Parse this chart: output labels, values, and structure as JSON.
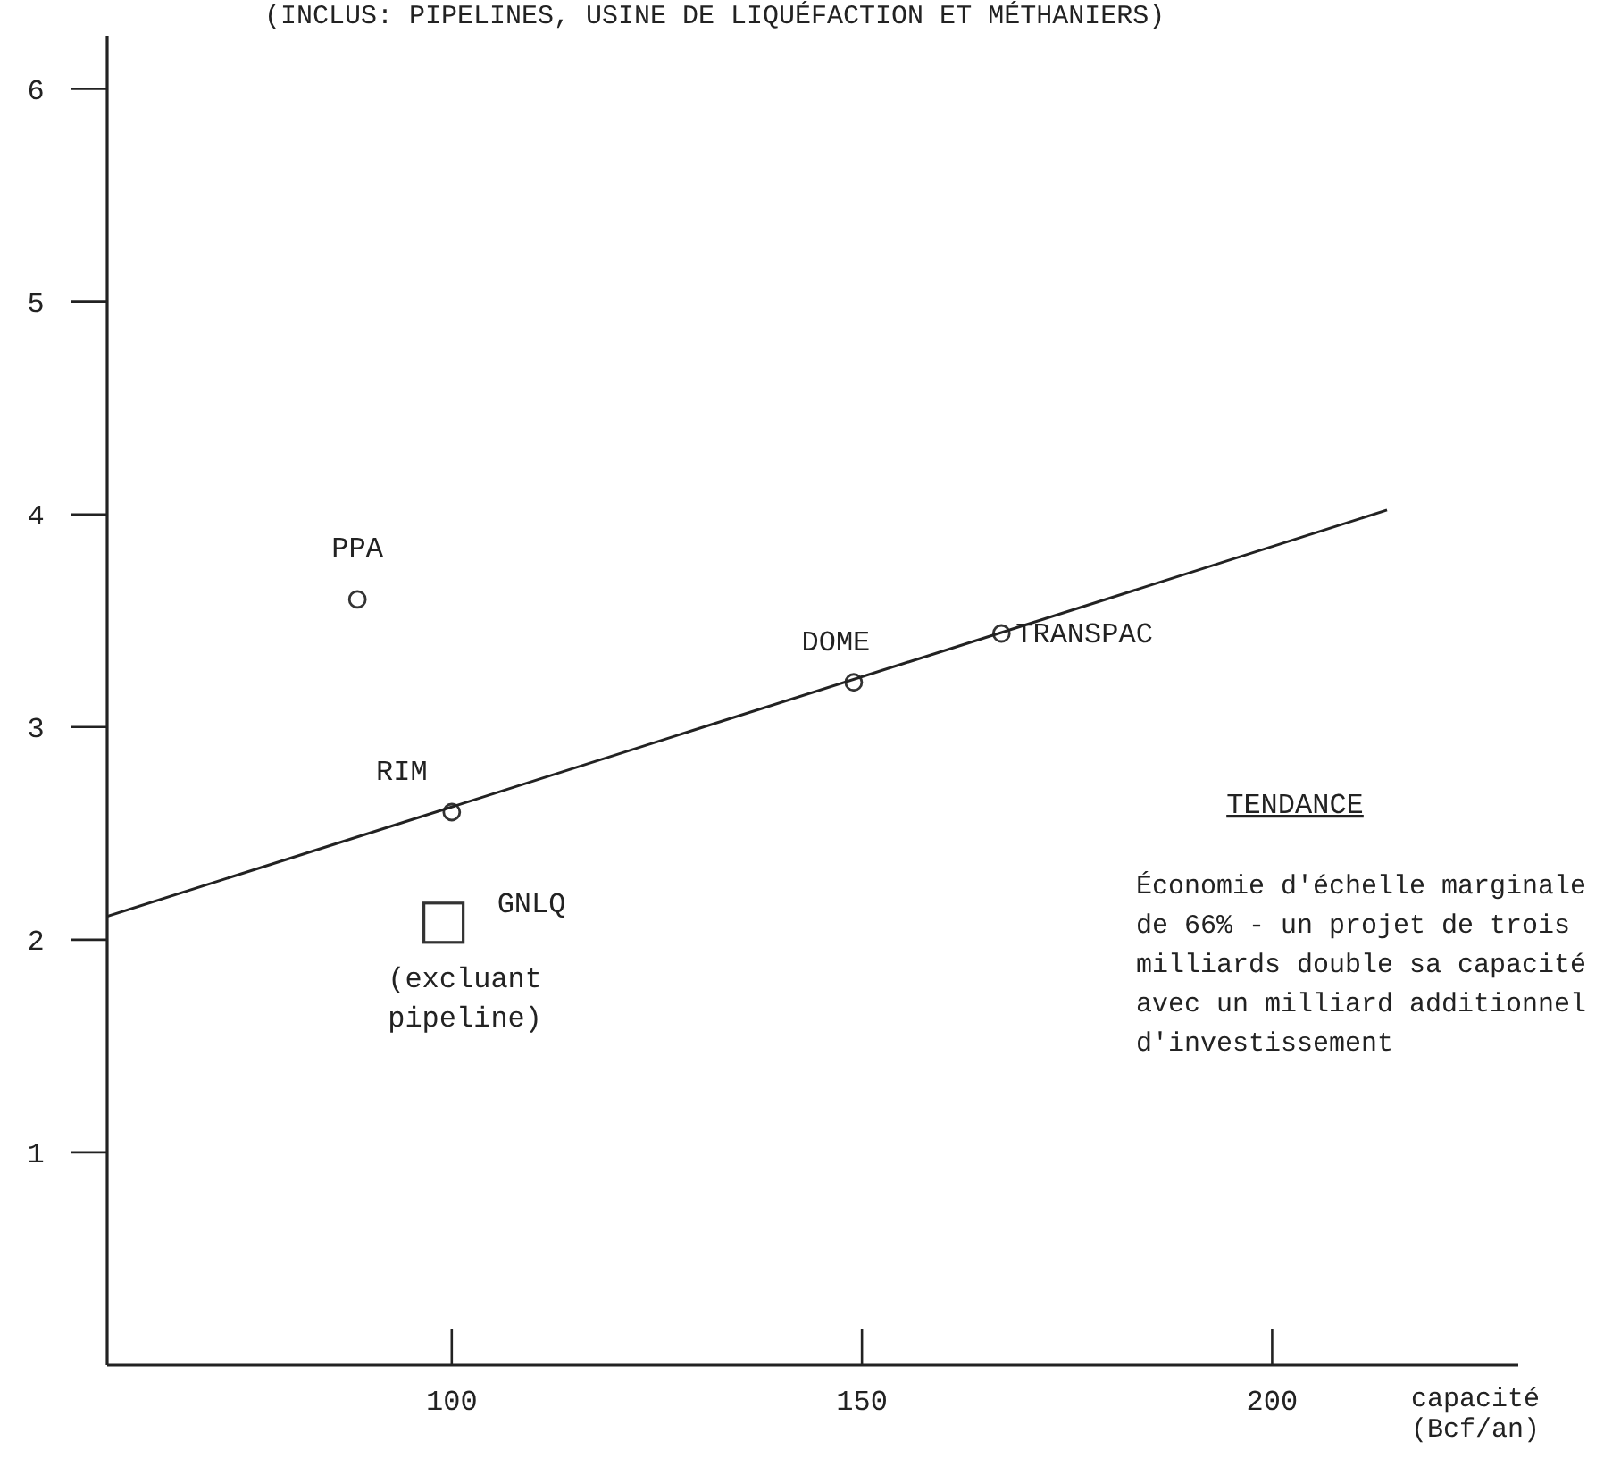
{
  "chart_data": {
    "type": "scatter",
    "title": "(INCLUS: PIPELINES, USINE DE LIQUÉFACTION ET MÉTHANIERS)",
    "xlabel": "capacité (Bcf/an)",
    "xlim": [
      58,
      230
    ],
    "xticks": [
      100,
      150,
      200
    ],
    "ylim": [
      0,
      6.25
    ],
    "yticks": [
      1,
      2,
      3,
      4,
      5,
      6
    ],
    "grid": false,
    "series": [
      {
        "name": "PPA",
        "marker": "circle",
        "color": "#333333",
        "x": [
          88.5
        ],
        "values": [
          3.6
        ]
      },
      {
        "name": "RIM",
        "marker": "circle",
        "color": "#333333",
        "x": [
          100
        ],
        "values": [
          2.6
        ]
      },
      {
        "name": "DOME",
        "marker": "circle",
        "color": "#333333",
        "x": [
          149
        ],
        "values": [
          3.21
        ]
      },
      {
        "name": "TRANSPAC",
        "marker": "circle",
        "color": "#333333",
        "x": [
          167
        ],
        "values": [
          3.44
        ]
      },
      {
        "name": "GNLQ",
        "marker": "square",
        "color": "#333333",
        "x": [
          99
        ],
        "values": [
          2.08
        ]
      },
      {
        "type": "line",
        "marker": "none",
        "line_style": "solid",
        "color": "#222222",
        "x": [
          58,
          214
        ],
        "values": [
          2.11,
          4.02
        ]
      }
    ],
    "annotations": [
      "(excluant pipeline)",
      "TENDANCE",
      "Économie d'échelle marginale de 66% - un projet de trois milliards double sa capacité avec un milliard additionnel d'investissement"
    ]
  }
}
